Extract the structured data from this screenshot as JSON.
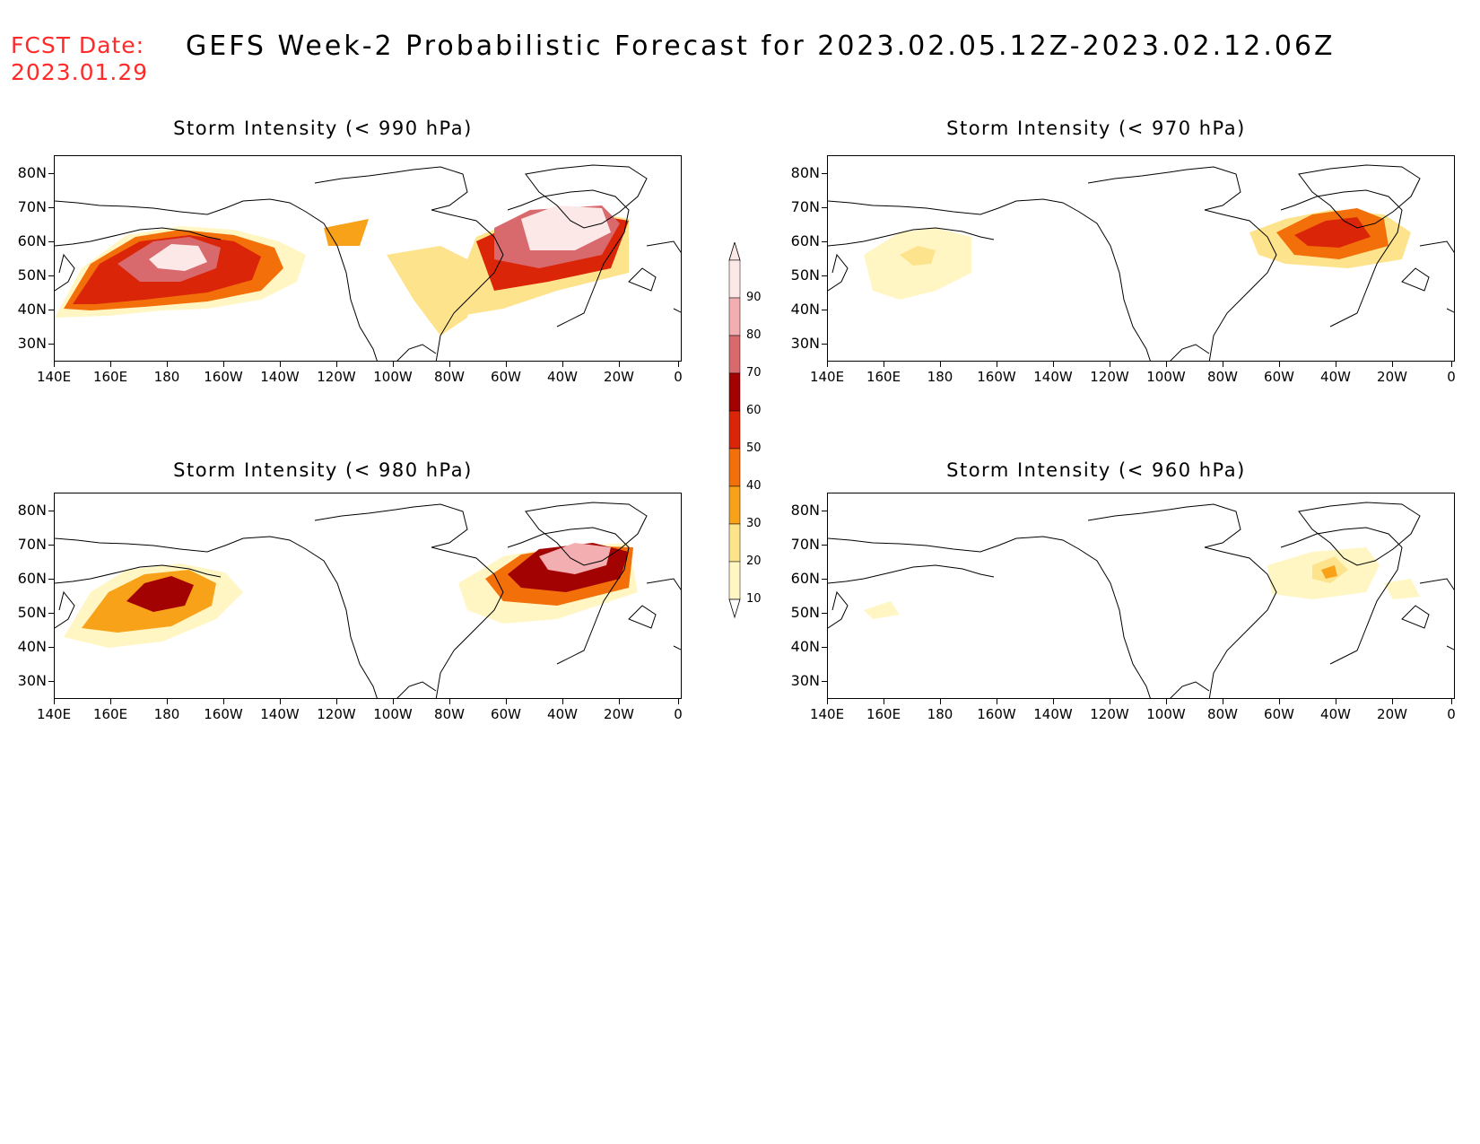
{
  "header": {
    "fcst_label": "FCST Date:",
    "fcst_date": "2023.01.29",
    "title": "GEFS Week-2 Probabilistic Forecast for 2023.02.05.12Z-2023.02.12.06Z"
  },
  "axes": {
    "lat_labels": [
      "80N",
      "70N",
      "60N",
      "50N",
      "40N",
      "30N"
    ],
    "lon_labels": [
      "140E",
      "160E",
      "180",
      "160W",
      "140W",
      "120W",
      "100W",
      "80W",
      "60W",
      "40W",
      "20W",
      "0"
    ]
  },
  "colorbar": {
    "levels": [
      "10",
      "20",
      "30",
      "40",
      "50",
      "60",
      "70",
      "80",
      "90"
    ],
    "colors": [
      "#fff6c4",
      "#fde48c",
      "#f8a21a",
      "#f36f0a",
      "#db2508",
      "#a30202",
      "#d86a6e",
      "#f2aeb0",
      "#fde8e8"
    ]
  },
  "panels": [
    {
      "title": "Storm Intensity (< 990 hPa)"
    },
    {
      "title": "Storm Intensity (< 970 hPa)"
    },
    {
      "title": "Storm Intensity (< 980 hPa)"
    },
    {
      "title": "Storm Intensity (< 960 hPa)"
    }
  ]
}
